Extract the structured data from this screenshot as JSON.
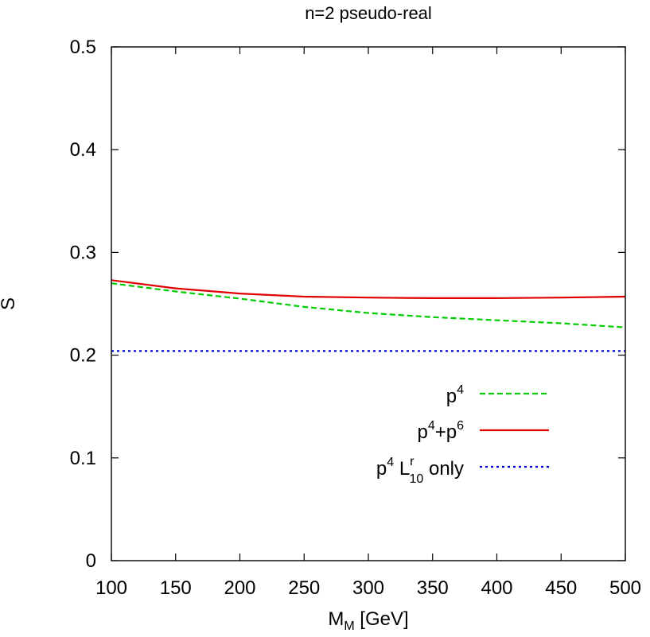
{
  "chart_data": {
    "type": "line",
    "title": "n=2 pseudo-real",
    "xlabel": {
      "main": "M",
      "sub": "M",
      "unit": " [GeV]"
    },
    "ylabel": "S",
    "xlim": [
      100,
      500
    ],
    "ylim": [
      0,
      0.5
    ],
    "xticks": [
      100,
      150,
      200,
      250,
      300,
      350,
      400,
      450,
      500
    ],
    "yticks": [
      0,
      0.1,
      0.2,
      0.3,
      0.4,
      0.5
    ],
    "xtick_labels": [
      "100",
      "150",
      "200",
      "250",
      "300",
      "350",
      "400",
      "450",
      "500"
    ],
    "ytick_labels": [
      "0",
      "0.1",
      "0.2",
      "0.3",
      "0.4",
      "0.5"
    ],
    "grid": false,
    "legend_position": "bottom-right",
    "series": [
      {
        "name": "p^4",
        "legend": {
          "p": "p",
          "sup": "4"
        },
        "color": "#00cc00",
        "dash": "dashed",
        "x": [
          100,
          150,
          200,
          250,
          300,
          350,
          400,
          450,
          500
        ],
        "y": [
          0.27,
          0.262,
          0.255,
          0.247,
          0.241,
          0.237,
          0.234,
          0.231,
          0.227
        ]
      },
      {
        "name": "p^4+p^6",
        "legend": {
          "p1": "p",
          "sup1": "4",
          "plus": "+p",
          "sup2": "6"
        },
        "color": "#e00000",
        "dash": "solid",
        "x": [
          100,
          150,
          200,
          250,
          300,
          350,
          400,
          450,
          500
        ],
        "y": [
          0.273,
          0.265,
          0.26,
          0.257,
          0.256,
          0.2555,
          0.2555,
          0.256,
          0.257
        ]
      },
      {
        "name": "p^4 L^r_10 only",
        "legend": {
          "p": "p",
          "sup": "4",
          "L": " L",
          "Lsup": "r",
          "Lsub": "10",
          "rest": " only"
        },
        "color": "#0000e0",
        "dash": "dotted",
        "x": [
          100,
          500
        ],
        "y": [
          0.204,
          0.204
        ]
      }
    ]
  }
}
